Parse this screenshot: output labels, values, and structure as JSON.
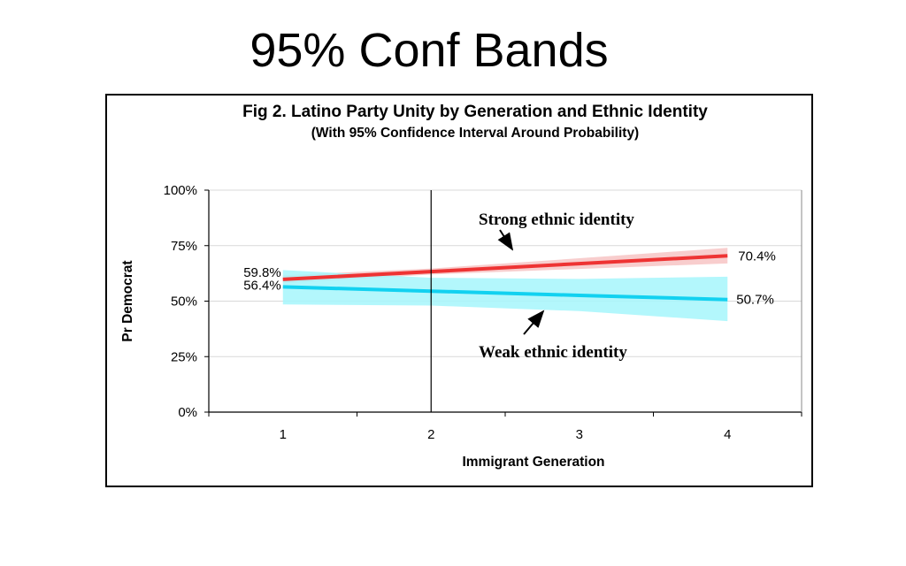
{
  "slide": {
    "title": "95% Conf Bands"
  },
  "chart_data": {
    "type": "line",
    "title": "Fig 2. Latino Party Unity by Generation and Ethnic Identity",
    "subtitle": "(With 95% Confidence Interval Around Probability)",
    "xlabel": "Immigrant Generation",
    "ylabel": "Pr Democrat",
    "x": [
      1,
      2,
      3,
      4
    ],
    "xlim": [
      0.5,
      4.5
    ],
    "ylim": [
      0,
      100
    ],
    "x_tick_labels": [
      "1",
      "2",
      "3",
      "4"
    ],
    "y_tick_labels": [
      "0%",
      "25%",
      "50%",
      "75%",
      "100%"
    ],
    "y_ticks": [
      0,
      25,
      50,
      75,
      100
    ],
    "grid": true,
    "reference_line_x": 2,
    "series": [
      {
        "key": "strong",
        "color": "#ee3333",
        "band_color": "#f7c4c4",
        "values": [
          59.8,
          63.3,
          66.9,
          70.4
        ],
        "lower": [
          58.0,
          62.0,
          64.5,
          67.0
        ],
        "upper": [
          61.6,
          64.7,
          69.3,
          74.0
        ]
      },
      {
        "key": "weak",
        "color": "#12d1f0",
        "band_color": "#a6f6fc",
        "values": [
          56.4,
          54.5,
          52.6,
          50.7
        ],
        "lower": [
          48.5,
          48.0,
          45.5,
          41.0
        ],
        "upper": [
          64.0,
          60.5,
          60.0,
          61.0
        ]
      }
    ],
    "data_labels": {
      "strong_start": "59.8%",
      "weak_start": "56.4%",
      "strong_end": "70.4%",
      "weak_end": "50.7%"
    },
    "annotations": {
      "strong": "Strong ethnic identity",
      "weak": "Weak ethnic identity"
    }
  }
}
